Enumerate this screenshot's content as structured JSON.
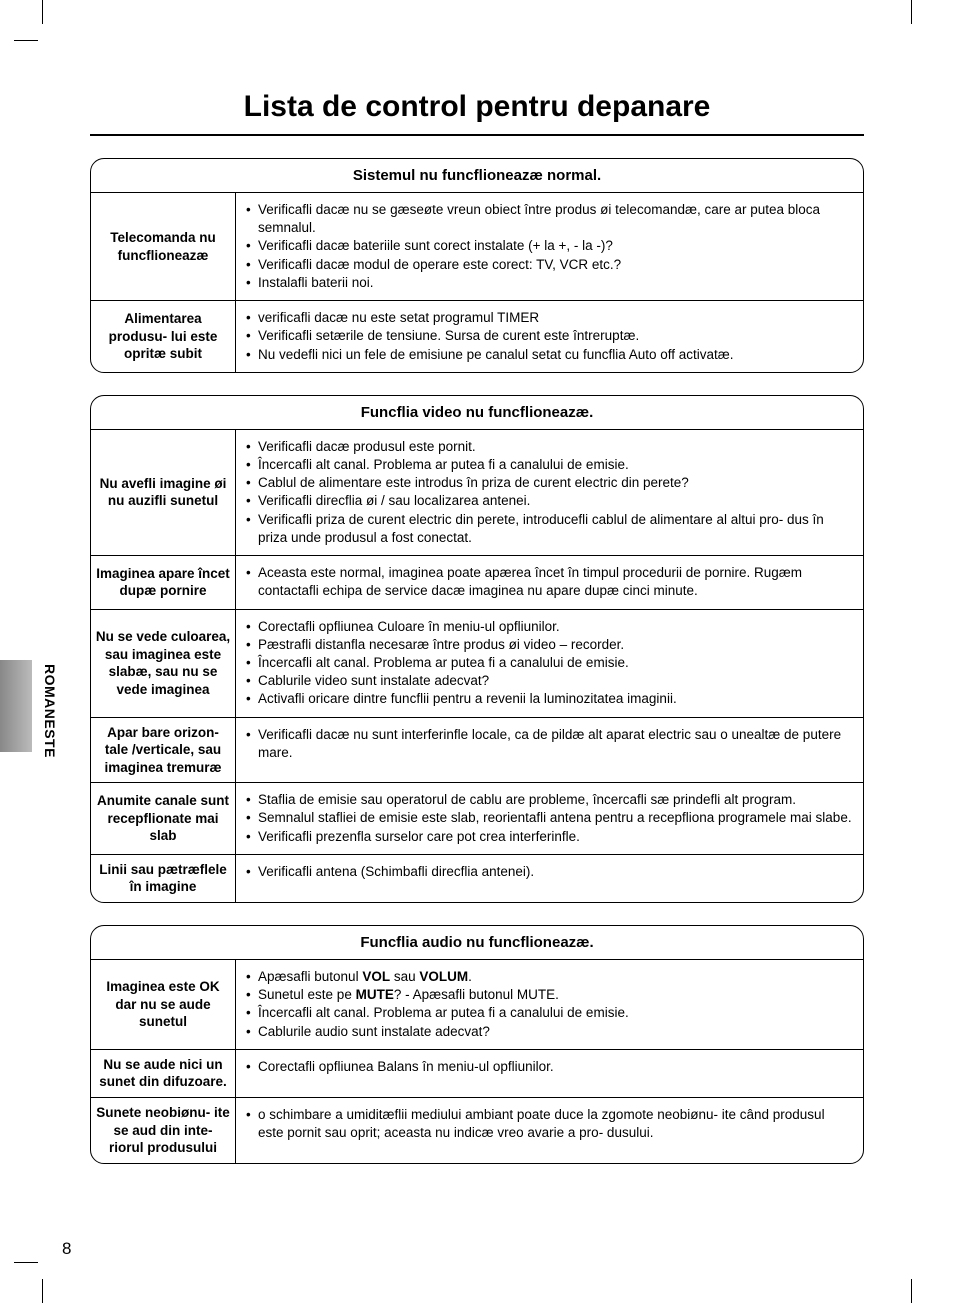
{
  "page_number": "8",
  "side_label": "ROMANESTE",
  "title": "Lista de control pentru depanare",
  "sections": [
    {
      "header": "Sistemul nu funcflioneazæ normal.",
      "rows": [
        {
          "label": "Telecomanda nu funcflioneazæ",
          "items": [
            "Verificafli dacæ nu se gæseøte vreun obiect între produs øi telecomandæ, care ar putea bloca semnalul.",
            "Verificafli dacæ bateriile sunt corect instalate (+ la +, - la -)?",
            "Verificafli dacæ modul de operare este corect: TV, VCR etc.?",
            "Instalafli baterii noi."
          ]
        },
        {
          "label": "Alimentarea produsu- lui este opritæ subit",
          "items": [
            "verificafli dacæ nu este setat programul TIMER",
            "Verificafli setærile de tensiune. Sursa de curent este întreruptæ.",
            "Nu vedefli nici un fele de emisiune pe canalul setat cu funcflia Auto off activatæ."
          ]
        }
      ]
    },
    {
      "header": "Funcflia video nu funcflioneazæ.",
      "rows": [
        {
          "label": "Nu avefli imagine øi nu auzifli sunetul",
          "items": [
            "Verificafli dacæ produsul este pornit.",
            "Încercafli alt canal. Problema ar putea fi a canalului de emisie.",
            "Cablul de alimentare este introdus în priza de curent electric din perete?",
            "Verificafli direcflia øi / sau localizarea antenei.",
            "Verificafli priza de curent electric din perete, introducefli cablul de alimentare al altui pro- dus în priza unde produsul a fost conectat."
          ]
        },
        {
          "label": "Imaginea apare încet dupæ pornire",
          "items": [
            "Aceasta este normal, imaginea poate apærea încet în timpul procedurii de pornire. Rugæm contactafli echipa de service dacæ imaginea nu apare dupæ cinci minute."
          ]
        },
        {
          "label": "Nu se vede culoarea, sau imaginea este slabæ, sau nu se vede imaginea",
          "items": [
            "Corectafli opfliunea Culoare în meniu-ul opfliunilor.",
            "Pæstrafli distanfla necesaræ între produs øi video – recorder.",
            "Încercafli alt canal. Problema ar putea fi a canalului de emisie.",
            "Cablurile video sunt instalate adecvat?",
            "Activafli oricare dintre funcflii pentru a revenii la luminozitatea imaginii."
          ]
        },
        {
          "label": "Apar bare orizon- tale /verticale, sau imaginea tremuræ",
          "items": [
            "Verificafli dacæ nu sunt interferinfle locale, ca de pildæ alt aparat electric sau o unealtæ de putere mare."
          ]
        },
        {
          "label": "Anumite canale sunt recepflionate mai slab",
          "items": [
            "Staflia de emisie sau operatorul de cablu are probleme, încercafli sæ prindefli alt program.",
            "Semnalul stafliei de emisie este slab, reorientafli antena pentru a recepfliona programele mai slabe.",
            "Verificafli prezenfla surselor care pot crea interferinfle."
          ]
        },
        {
          "label": "Linii sau pætræflele în imagine",
          "items": [
            "Verificafli antena (Schimbafli direcflia antenei)."
          ]
        }
      ]
    },
    {
      "header": "Funcflia audio nu funcflioneazæ.",
      "rows": [
        {
          "label": "Imaginea este OK dar nu se aude sunetul",
          "items_html": [
            "Apæsafli butonul <b>VOL</b> sau <b>VOLUM</b>.",
            "Sunetul este pe <b>MUTE</b>? - Apæsafli butonul MUTE.",
            "Încercafli alt canal. Problema ar putea fi a canalului de emisie.",
            "Cablurile audio sunt instalate adecvat?"
          ]
        },
        {
          "label": "Nu se aude nici un sunet din difuzoare.",
          "items": [
            "Corectafli opfliunea Balans în meniu-ul opfliunilor."
          ]
        },
        {
          "label": "Sunete neobiønu- ite se aud din inte- riorul produsului",
          "items": [
            "o schimbare a umiditæflii mediului ambiant poate duce la zgomote neobiønu- ite când produsul este pornit sau oprit; aceasta nu indicæ vreo avarie a pro- dusului."
          ]
        }
      ]
    }
  ]
}
